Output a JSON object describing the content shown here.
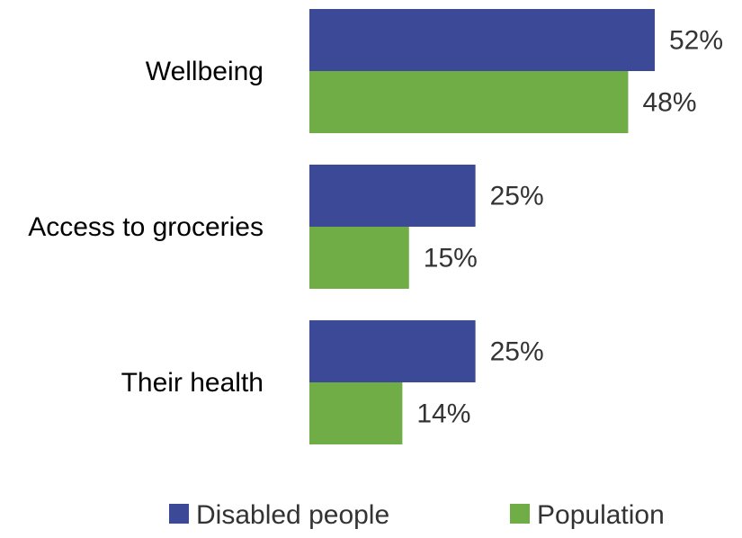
{
  "chart_data": {
    "type": "bar",
    "orientation": "horizontal",
    "categories": [
      "Wellbeing",
      "Access to groceries",
      "Their health"
    ],
    "series": [
      {
        "name": "Disabled people",
        "values": [
          52,
          25,
          25
        ],
        "color": "#3c4996"
      },
      {
        "name": "Population",
        "values": [
          48,
          15,
          14
        ],
        "color": "#70ad47"
      }
    ],
    "value_labels": [
      [
        "52%",
        "25%",
        "25%"
      ],
      [
        "48%",
        "15%",
        "14%"
      ]
    ],
    "xlim": [
      0,
      52
    ],
    "grid": false,
    "legend_position": "bottom"
  }
}
